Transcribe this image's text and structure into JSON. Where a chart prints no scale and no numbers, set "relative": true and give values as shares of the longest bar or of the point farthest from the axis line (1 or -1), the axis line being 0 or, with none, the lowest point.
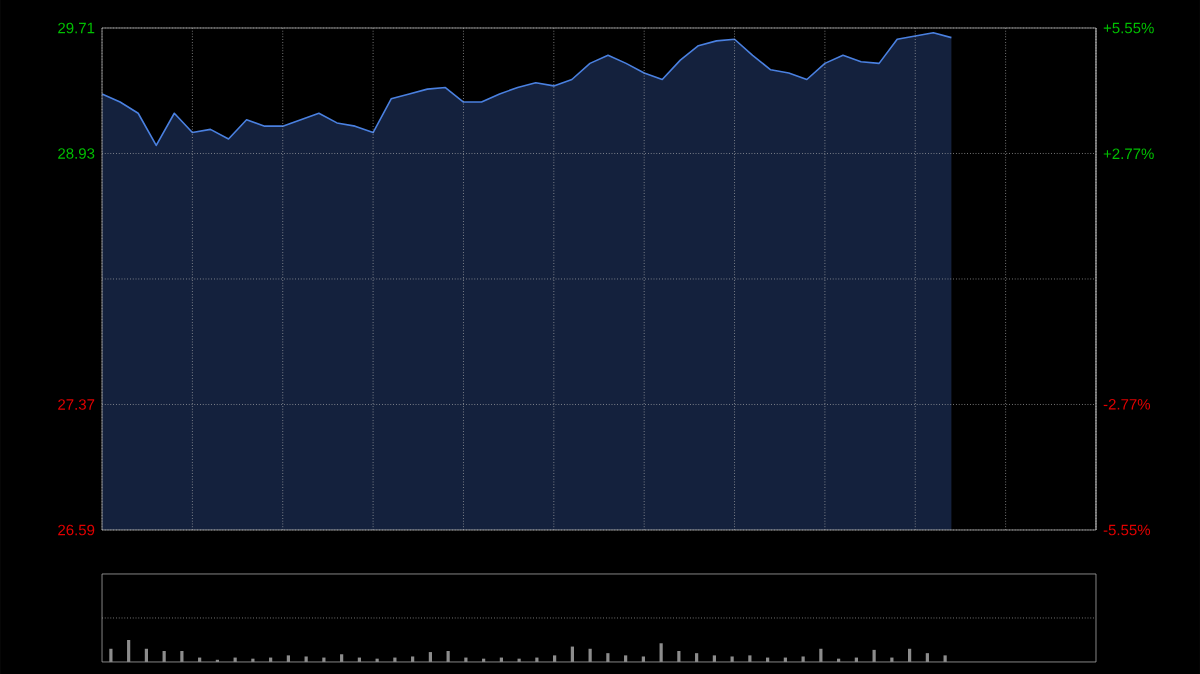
{
  "chart_data": [
    {
      "type": "area",
      "categories": [
        null,
        null,
        null,
        null,
        null,
        null,
        null,
        null,
        null,
        null,
        null,
        null,
        null,
        null,
        null,
        null,
        null,
        null,
        null,
        null,
        null,
        null,
        null,
        null,
        null,
        null,
        null,
        null,
        null,
        null,
        null,
        null,
        null,
        null,
        null,
        null,
        null,
        null,
        null,
        null,
        null,
        null,
        null,
        null,
        null,
        null,
        null,
        null,
        null,
        null,
        null,
        null,
        null,
        null,
        null,
        null
      ],
      "series": [
        {
          "color": "#4a80e0",
          "values": [
            29.3,
            29.25,
            29.18,
            28.98,
            29.18,
            29.06,
            29.08,
            29.02,
            29.14,
            29.1,
            29.1,
            29.14,
            29.18,
            29.12,
            29.1,
            29.06,
            29.27,
            29.3,
            29.33,
            29.34,
            29.25,
            29.25,
            29.3,
            29.34,
            29.37,
            29.35,
            29.39,
            29.49,
            29.54,
            29.49,
            29.43,
            29.39,
            29.51,
            29.6,
            29.63,
            29.64,
            29.54,
            29.45,
            29.43,
            29.39,
            29.49,
            29.54,
            29.5,
            29.49,
            29.64,
            29.66,
            29.68,
            29.65,
            null,
            null,
            null,
            null,
            null,
            null,
            null,
            null
          ]
        }
      ],
      "ylim": [
        26.59,
        29.71
      ],
      "yticks": [
        26.59,
        27.37,
        {
          "value": 28.15,
          "label": null
        },
        28.93,
        29.71
      ],
      "y2lim": [
        -5.55,
        5.55
      ],
      "y2ticks": [
        {
          "value": -5.55,
          "label": "-5.55%"
        },
        {
          "value": -2.77,
          "label": "-2.77%"
        },
        {
          "value": 0,
          "label": null
        },
        {
          "value": 2.77,
          "label": "+2.77%"
        },
        {
          "value": 5.55,
          "label": "+5.55%"
        }
      ],
      "grid": true,
      "tick_labels": "y"
    },
    {
      "type": "bar",
      "relative": true,
      "color": "#8c8c8c",
      "categories": [
        null,
        null,
        null,
        null,
        null,
        null,
        null,
        null,
        null,
        null,
        null,
        null,
        null,
        null,
        null,
        null,
        null,
        null,
        null,
        null,
        null,
        null,
        null,
        null,
        null,
        null,
        null,
        null,
        null,
        null,
        null,
        null,
        null,
        null,
        null,
        null,
        null,
        null,
        null,
        null,
        null,
        null,
        null,
        null,
        null,
        null,
        null,
        null,
        null,
        null,
        null,
        null,
        null,
        null,
        null,
        null
      ],
      "values": [
        0.6,
        1.0,
        0.6,
        0.5,
        0.5,
        0.2,
        0.1,
        0.2,
        0.15,
        0.2,
        0.3,
        0.25,
        0.2,
        0.35,
        0.2,
        0.15,
        0.2,
        0.25,
        0.45,
        0.5,
        0.2,
        0.15,
        0.2,
        0.15,
        0.2,
        0.3,
        0.7,
        0.6,
        0.4,
        0.3,
        0.25,
        0.85,
        0.5,
        0.4,
        0.3,
        0.25,
        0.3,
        0.2,
        0.2,
        0.25,
        0.6,
        0.15,
        0.2,
        0.55,
        0.2,
        0.6,
        0.4,
        0.3,
        null,
        null,
        null,
        null,
        null,
        null,
        null,
        null
      ],
      "grid": false
    }
  ]
}
